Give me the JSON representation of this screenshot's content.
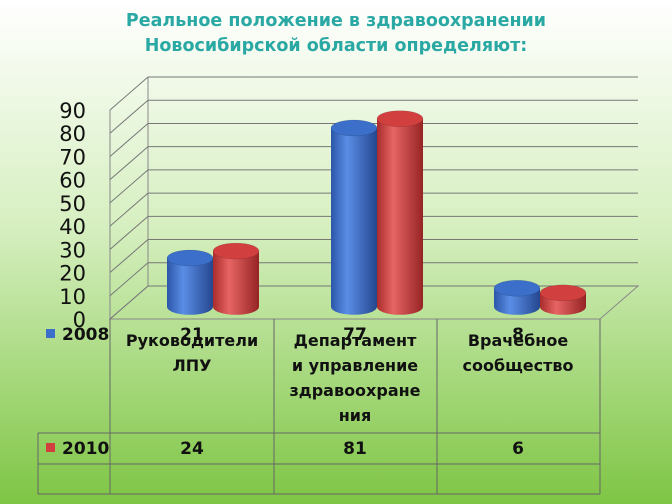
{
  "title": {
    "line1": "Реальное положение в здравоохранении",
    "line2": "Новосибирской области определяют:"
  },
  "colors": {
    "background_top": "#ffffff",
    "background_bottom": "#7ec544",
    "title": "#2aa8a4",
    "series_2008": "#3b6fc9",
    "series_2010": "#d23f3f"
  },
  "chart_data": {
    "type": "bar",
    "style": "3d-cylinder",
    "categories": [
      [
        "Руководители",
        "ЛПУ"
      ],
      [
        "Департамент",
        "и управление",
        "здравоохране",
        "ния"
      ],
      [
        "Врачебное",
        "сообщество"
      ]
    ],
    "series": [
      {
        "name": "2008",
        "values": [
          21,
          77,
          8
        ],
        "color": "#3b6fc9"
      },
      {
        "name": "2010",
        "values": [
          24,
          81,
          6
        ],
        "color": "#d23f3f"
      }
    ],
    "ylim": [
      0,
      90
    ],
    "yticks": [
      0,
      10,
      20,
      30,
      40,
      50,
      60,
      70,
      80,
      90
    ],
    "grid": true,
    "legend": "data-table"
  }
}
